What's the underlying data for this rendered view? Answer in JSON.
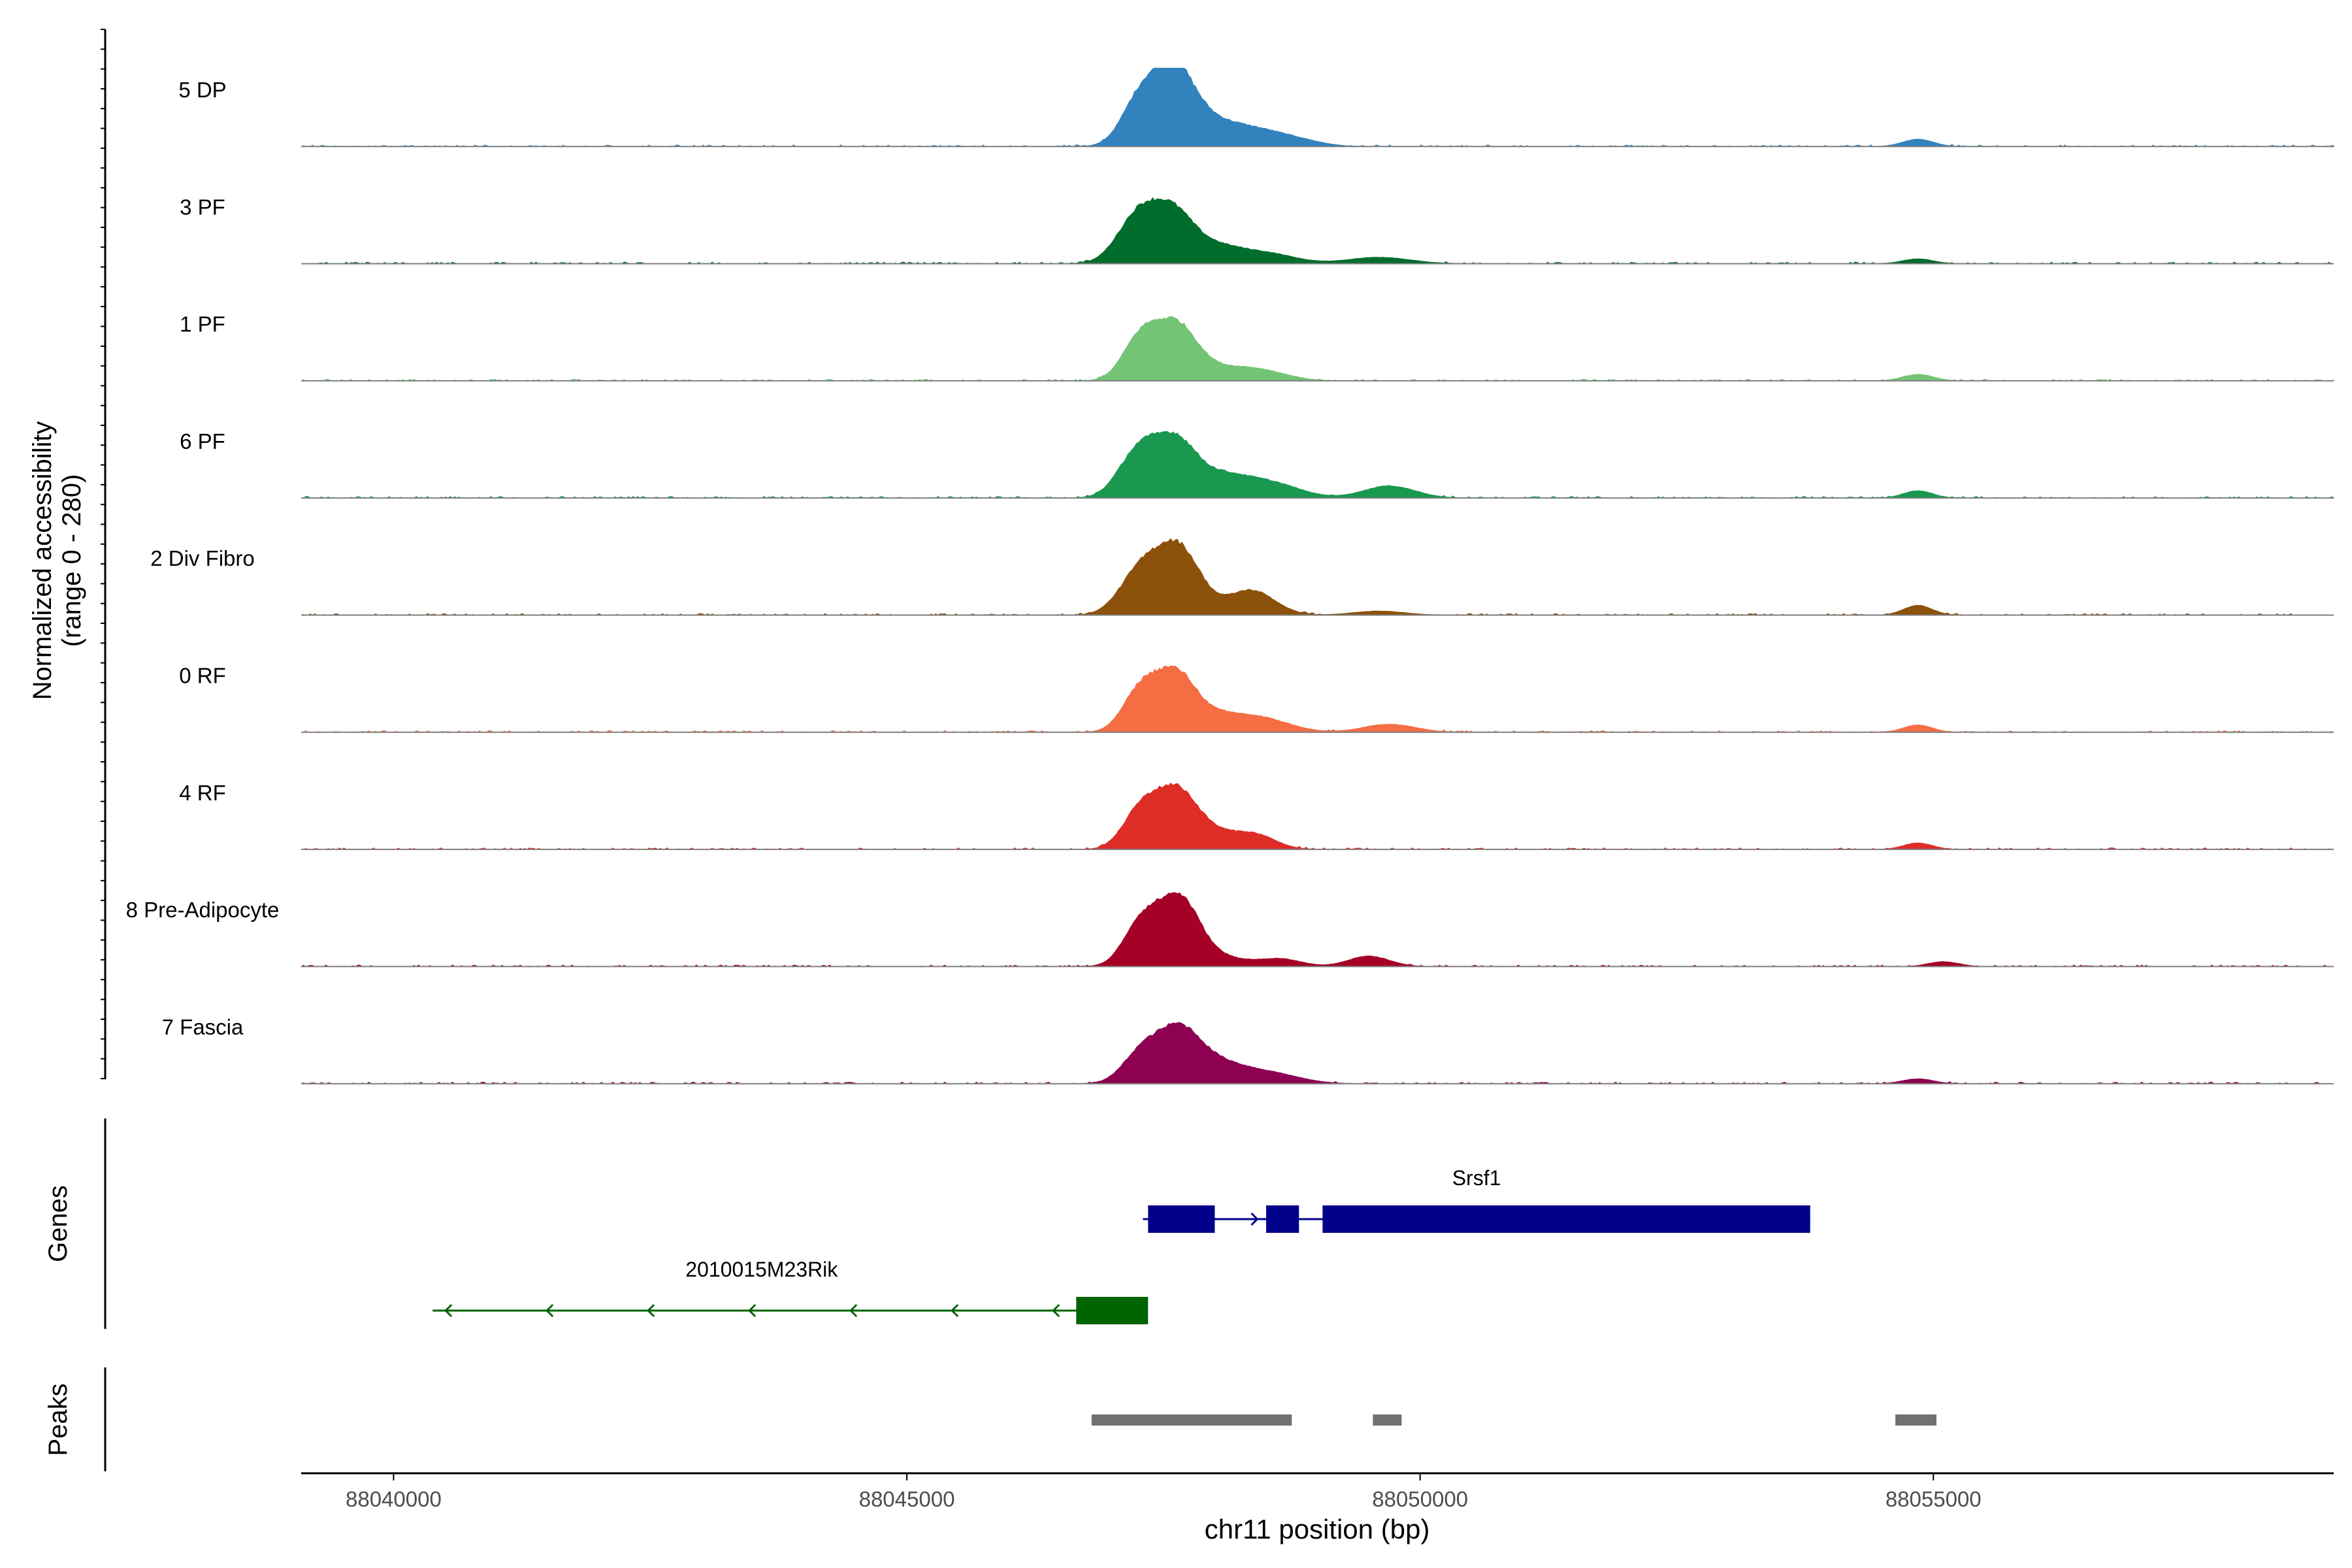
{
  "chart_data": {
    "type": "area",
    "title": "",
    "ylabel_line1": "Normalized accessibility",
    "ylabel_line2": "(range 0 - 280)",
    "ylim": [
      0,
      280
    ],
    "xlabel": "chr11 position (bp)",
    "xlim": [
      88039100,
      88058900
    ],
    "x_ticks": [
      88040000,
      88045000,
      88050000,
      88055000
    ],
    "x_tick_labels": [
      "88040000",
      "88045000",
      "88050000",
      "88055000"
    ],
    "track_labels": {
      "genes": "Genes",
      "peaks": "Peaks"
    },
    "series": [
      {
        "name": "5 DP",
        "color": "#3182bd",
        "bumps": [
          [
            88047280,
            0.6,
            180
          ],
          [
            88047600,
            0.72,
            180
          ],
          [
            88047800,
            0.3,
            260
          ],
          [
            88048300,
            0.22,
            320
          ],
          [
            88048800,
            0.06,
            250
          ],
          [
            88054850,
            0.09,
            150
          ]
        ]
      },
      {
        "name": "3 PF",
        "color": "#006d2c",
        "bumps": [
          [
            88047250,
            0.58,
            200
          ],
          [
            88047600,
            0.59,
            200
          ],
          [
            88048000,
            0.17,
            220
          ],
          [
            88048450,
            0.14,
            300
          ],
          [
            88049600,
            0.08,
            300
          ],
          [
            88054850,
            0.06,
            150
          ]
        ]
      },
      {
        "name": "1 PF",
        "color": "#74c476",
        "bumps": [
          [
            88047270,
            0.5,
            170
          ],
          [
            88047620,
            0.68,
            200
          ],
          [
            88048000,
            0.1,
            230
          ],
          [
            88048400,
            0.14,
            280
          ],
          [
            88054850,
            0.08,
            150
          ]
        ]
      },
      {
        "name": "6 PF",
        "color": "#1a9850",
        "bumps": [
          [
            88047250,
            0.56,
            190
          ],
          [
            88047620,
            0.68,
            200
          ],
          [
            88048050,
            0.22,
            230
          ],
          [
            88048500,
            0.2,
            300
          ],
          [
            88049700,
            0.15,
            250
          ],
          [
            88054850,
            0.09,
            140
          ]
        ]
      },
      {
        "name": "2 Div Fibro",
        "color": "#8c510a",
        "bumps": [
          [
            88047270,
            0.52,
            200
          ],
          [
            88047650,
            0.82,
            210
          ],
          [
            88048350,
            0.31,
            230
          ],
          [
            88049600,
            0.05,
            250
          ],
          [
            88054850,
            0.12,
            140
          ]
        ]
      },
      {
        "name": "0 RF",
        "color": "#f46d43",
        "bumps": [
          [
            88047270,
            0.48,
            170
          ],
          [
            88047620,
            0.72,
            200
          ],
          [
            88048050,
            0.15,
            220
          ],
          [
            88048450,
            0.17,
            280
          ],
          [
            88049700,
            0.1,
            250
          ],
          [
            88054850,
            0.09,
            140
          ]
        ]
      },
      {
        "name": "4 RF",
        "color": "#de2d26",
        "bumps": [
          [
            88047270,
            0.45,
            170
          ],
          [
            88047620,
            0.71,
            200
          ],
          [
            88048000,
            0.18,
            220
          ],
          [
            88048400,
            0.17,
            200
          ],
          [
            88054850,
            0.08,
            140
          ]
        ]
      },
      {
        "name": "8 Pre-Adipocyte",
        "color": "#a50026",
        "bumps": [
          [
            88047280,
            0.52,
            170
          ],
          [
            88047650,
            0.84,
            200
          ],
          [
            88048100,
            0.1,
            250
          ],
          [
            88048650,
            0.09,
            200
          ],
          [
            88049500,
            0.13,
            200
          ],
          [
            88055100,
            0.06,
            150
          ]
        ]
      },
      {
        "name": "7 Fascia",
        "color": "#8e0152",
        "bumps": [
          [
            88047280,
            0.36,
            180
          ],
          [
            88047650,
            0.66,
            210
          ],
          [
            88048050,
            0.2,
            230
          ],
          [
            88048500,
            0.14,
            300
          ],
          [
            88054850,
            0.06,
            150
          ]
        ]
      }
    ],
    "genes": [
      {
        "name": "Srsf1",
        "color": "#00008b",
        "strand": "+",
        "start": 88047300,
        "end": 88053800,
        "exons": [
          [
            88047350,
            88048000
          ],
          [
            88048500,
            88048820
          ],
          [
            88049050,
            88053800
          ]
        ]
      },
      {
        "name": "2010015M23Rik",
        "color": "#006400",
        "strand": "-",
        "start": 88040380,
        "end": 88047300,
        "exons": [
          [
            88046650,
            88047350
          ]
        ]
      }
    ],
    "peaks": [
      [
        88046800,
        88048750
      ],
      [
        88049540,
        88049820
      ],
      [
        88054630,
        88055030
      ]
    ],
    "peaks_color": "#707070"
  }
}
